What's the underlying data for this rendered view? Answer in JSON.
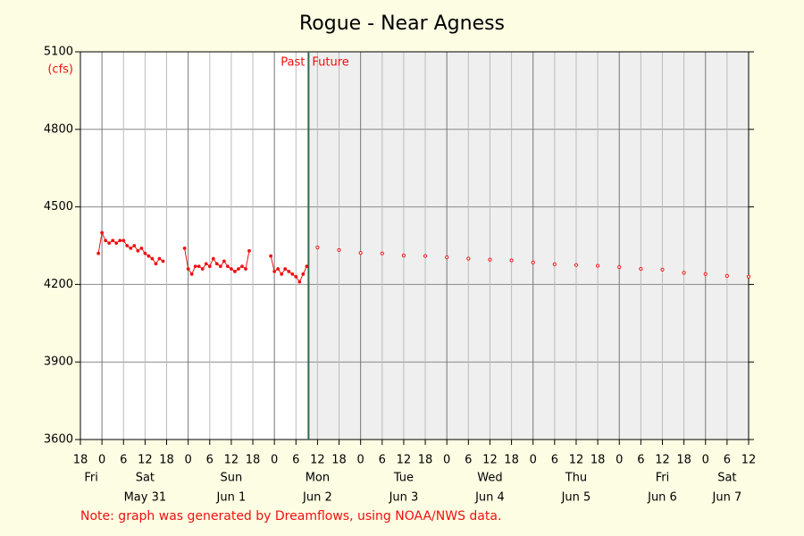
{
  "chart_data": {
    "type": "hydrograph",
    "title": "Rogue - Near Agness",
    "y_label": "(cfs)",
    "note": "Note: graph was generated by Dreamflows, using NOAA/NWS data.",
    "past_label": "Past",
    "future_label": "Future",
    "now": "Jun 2 09:30",
    "xlim": [
      "May 30 18:00",
      "Jun 7 12:00"
    ],
    "ylim": [
      3600,
      5100
    ],
    "yticks": [
      3600,
      3900,
      4200,
      4500,
      4800,
      5100
    ],
    "grid": true,
    "xticks": [
      {
        "value": "May 30 18:00",
        "label": "18"
      },
      {
        "value": "May 31 00:00",
        "label": "0"
      },
      {
        "value": "May 31 06:00",
        "label": "6"
      },
      {
        "value": "May 31 12:00",
        "label": "12"
      },
      {
        "value": "May 31 18:00",
        "label": "18"
      },
      {
        "value": "Jun 1 00:00",
        "label": "0"
      },
      {
        "value": "Jun 1 06:00",
        "label": "6"
      },
      {
        "value": "Jun 1 12:00",
        "label": "12"
      },
      {
        "value": "Jun 1 18:00",
        "label": "18"
      },
      {
        "value": "Jun 2 00:00",
        "label": "0"
      },
      {
        "value": "Jun 2 06:00",
        "label": "6"
      },
      {
        "value": "Jun 2 12:00",
        "label": "12"
      },
      {
        "value": "Jun 2 18:00",
        "label": "18"
      },
      {
        "value": "Jun 3 00:00",
        "label": "0"
      },
      {
        "value": "Jun 3 06:00",
        "label": "6"
      },
      {
        "value": "Jun 3 12:00",
        "label": "12"
      },
      {
        "value": "Jun 3 18:00",
        "label": "18"
      },
      {
        "value": "Jun 4 00:00",
        "label": "0"
      },
      {
        "value": "Jun 4 06:00",
        "label": "6"
      },
      {
        "value": "Jun 4 12:00",
        "label": "12"
      },
      {
        "value": "Jun 4 18:00",
        "label": "18"
      },
      {
        "value": "Jun 5 00:00",
        "label": "0"
      },
      {
        "value": "Jun 5 06:00",
        "label": "6"
      },
      {
        "value": "Jun 5 12:00",
        "label": "12"
      },
      {
        "value": "Jun 5 18:00",
        "label": "18"
      },
      {
        "value": "Jun 6 00:00",
        "label": "0"
      },
      {
        "value": "Jun 6 06:00",
        "label": "6"
      },
      {
        "value": "Jun 6 12:00",
        "label": "12"
      },
      {
        "value": "Jun 6 18:00",
        "label": "18"
      },
      {
        "value": "Jun 7 00:00",
        "label": "0"
      },
      {
        "value": "Jun 7 06:00",
        "label": "6"
      },
      {
        "value": "Jun 7 12:00",
        "label": "12"
      }
    ],
    "days": [
      {
        "name": "Fri"
      },
      {
        "name": "Sat",
        "date": "May 31"
      },
      {
        "name": "Sun",
        "date": "Jun 1"
      },
      {
        "name": "Mon",
        "date": "Jun 2"
      },
      {
        "name": "Tue",
        "date": "Jun 3"
      },
      {
        "name": "Wed",
        "date": "Jun 4"
      },
      {
        "name": "Thu",
        "date": "Jun 5"
      },
      {
        "name": "Fri",
        "date": "Jun 6"
      },
      {
        "name": "Sat",
        "date": "Jun 7"
      }
    ],
    "series": [
      {
        "color": "#ee1111",
        "mode": "lines+markers",
        "x": [
          "May 30 23:00",
          "May 31 00:00",
          "May 31 01:00",
          "May 31 02:00",
          "May 31 03:00",
          "May 31 04:00",
          "May 31 05:00",
          "May 31 06:00",
          "May 31 07:00",
          "May 31 08:00",
          "May 31 09:00",
          "May 31 10:00",
          "May 31 11:00",
          "May 31 12:00",
          "May 31 13:00",
          "May 31 14:00",
          "May 31 15:00",
          "May 31 16:00",
          "May 31 17:00",
          "May 31 20:00",
          "May 31 23:00",
          "Jun 1 00:00",
          "Jun 1 01:00",
          "Jun 1 02:00",
          "Jun 1 03:00",
          "Jun 1 04:00",
          "Jun 1 05:00",
          "Jun 1 06:00",
          "Jun 1 07:00",
          "Jun 1 08:00",
          "Jun 1 09:00",
          "Jun 1 10:00",
          "Jun 1 11:00",
          "Jun 1 12:00",
          "Jun 1 13:00",
          "Jun 1 14:00",
          "Jun 1 15:00",
          "Jun 1 16:00",
          "Jun 1 17:00",
          "Jun 1 20:00",
          "Jun 1 23:00",
          "Jun 2 00:00",
          "Jun 2 01:00",
          "Jun 2 02:00",
          "Jun 2 03:00",
          "Jun 2 04:00",
          "Jun 2 05:00",
          "Jun 2 06:00",
          "Jun 2 07:00",
          "Jun 2 08:00",
          "Jun 2 09:00"
        ],
        "values": [
          4320,
          4400,
          4370,
          4360,
          4370,
          4360,
          4370,
          4370,
          4350,
          4340,
          4350,
          4330,
          4340,
          4320,
          4310,
          4300,
          4280,
          4300,
          4290,
          null,
          4340,
          4260,
          4240,
          4270,
          4270,
          4260,
          4280,
          4270,
          4300,
          4280,
          4270,
          4290,
          4270,
          4260,
          4250,
          4260,
          4270,
          4260,
          4330,
          null,
          4310,
          4250,
          4260,
          4240,
          4260,
          4250,
          4240,
          4230,
          4210,
          4240,
          4270
        ]
      },
      {
        "color": "#ee1111",
        "mode": "markers",
        "x": [
          "Jun 2 12:00",
          "Jun 2 18:00",
          "Jun 3 00:00",
          "Jun 3 06:00",
          "Jun 3 12:00",
          "Jun 3 18:00",
          "Jun 4 00:00",
          "Jun 4 06:00",
          "Jun 4 12:00",
          "Jun 4 18:00",
          "Jun 5 00:00",
          "Jun 5 06:00",
          "Jun 5 12:00",
          "Jun 5 18:00",
          "Jun 6 00:00",
          "Jun 6 06:00",
          "Jun 6 12:00",
          "Jun 6 18:00",
          "Jun 7 00:00",
          "Jun 7 06:00",
          "Jun 7 12:00"
        ],
        "values": [
          4343,
          4333,
          4322,
          4320,
          4312,
          4310,
          4305,
          4300,
          4296,
          4293,
          4285,
          4278,
          4275,
          4272,
          4267,
          4260,
          4257,
          4245,
          4240,
          4233,
          4230
        ]
      }
    ]
  }
}
